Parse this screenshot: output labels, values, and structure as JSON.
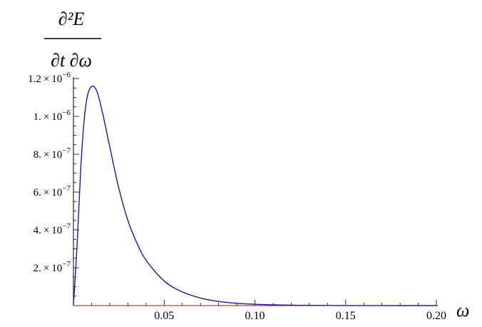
{
  "chart_data": {
    "type": "line",
    "title": "",
    "ylabel": {
      "numerator": "∂²E",
      "denominator": "∂t ∂ω"
    },
    "xlabel": "ω",
    "xlim": [
      0,
      0.2
    ],
    "ylim": [
      0,
      1.2e-06
    ],
    "grid": false,
    "x_ticks": [
      {
        "value": 0.05,
        "label": "0.05"
      },
      {
        "value": 0.1,
        "label": "0.10"
      },
      {
        "value": 0.15,
        "label": "0.15"
      },
      {
        "value": 0.2,
        "label": "0.20"
      }
    ],
    "y_ticks": [
      {
        "value": 2e-07,
        "mant": "2.",
        "exp": "−7"
      },
      {
        "value": 4e-07,
        "mant": "4.",
        "exp": "−7"
      },
      {
        "value": 6e-07,
        "mant": "6.",
        "exp": "−7"
      },
      {
        "value": 8e-07,
        "mant": "8.",
        "exp": "−7"
      },
      {
        "value": 1e-06,
        "mant": "1.",
        "exp": "−6"
      },
      {
        "value": 1.2e-06,
        "mant": "1.2",
        "exp": "−6"
      }
    ],
    "series": [
      {
        "color": "#1a1aa6",
        "x": [
          0,
          0.002,
          0.004,
          0.006,
          0.008,
          0.0105,
          0.013,
          0.016,
          0.02,
          0.025,
          0.03,
          0.035,
          0.04,
          0.05,
          0.06,
          0.07,
          0.08,
          0.09,
          0.1,
          0.12,
          0.14,
          0.16,
          0.18,
          0.2
        ],
        "y": [
          0,
          3.2e-07,
          7.2e-07,
          9.9e-07,
          1.12e-06,
          1.16e-06,
          1.13e-06,
          1.02e-06,
          8.4e-07,
          6.2e-07,
          4.5e-07,
          3.3e-07,
          2.4e-07,
          1.3e-07,
          7.2e-08,
          4e-08,
          2.2e-08,
          1.2e-08,
          7e-09,
          2e-09,
          6e-10,
          2e-10,
          5e-11,
          1e-11
        ]
      }
    ]
  },
  "colors": {
    "curve": "#1a1aa6",
    "zero_line": "#8b1a1a",
    "axes": "#000000"
  }
}
